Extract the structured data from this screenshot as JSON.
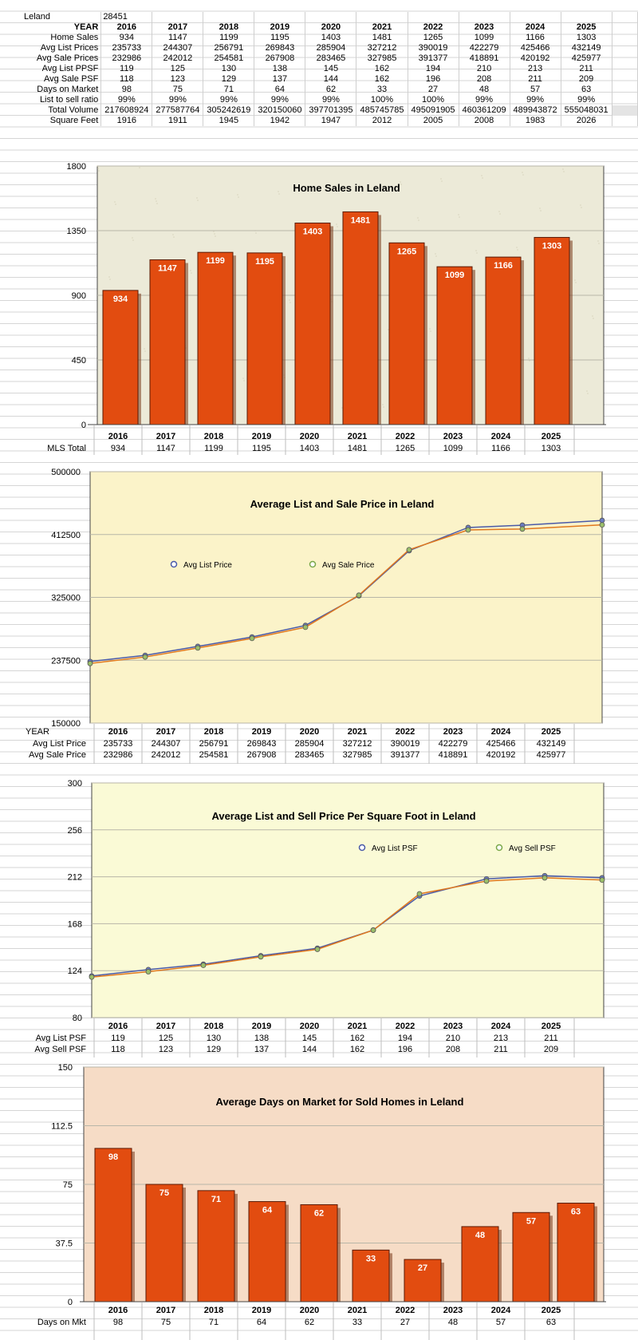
{
  "years": [
    "2016",
    "2017",
    "2018",
    "2019",
    "2020",
    "2021",
    "2022",
    "2023",
    "2024",
    "2025"
  ],
  "header": {
    "city_label": "Leland",
    "zip": "28451"
  },
  "table": [
    {
      "label": "YEAR",
      "bold": true,
      "values": [
        "2016",
        "2017",
        "2018",
        "2019",
        "2020",
        "2021",
        "2022",
        "2023",
        "2024",
        "2025"
      ]
    },
    {
      "label": "Home Sales",
      "values": [
        "934",
        "1147",
        "1199",
        "1195",
        "1403",
        "1481",
        "1265",
        "1099",
        "1166",
        "1303"
      ]
    },
    {
      "label": "Avg List Prices",
      "values": [
        "235733",
        "244307",
        "256791",
        "269843",
        "285904",
        "327212",
        "390019",
        "422279",
        "425466",
        "432149"
      ]
    },
    {
      "label": "Avg Sale Prices",
      "values": [
        "232986",
        "242012",
        "254581",
        "267908",
        "283465",
        "327985",
        "391377",
        "418891",
        "420192",
        "425977"
      ]
    },
    {
      "label": "Avg  List PPSF",
      "values": [
        "119",
        "125",
        "130",
        "138",
        "145",
        "162",
        "194",
        "210",
        "213",
        "211"
      ]
    },
    {
      "label": "Avg Sale PSF",
      "values": [
        "118",
        "123",
        "129",
        "137",
        "144",
        "162",
        "196",
        "208",
        "211",
        "209"
      ]
    },
    {
      "label": "Days on Market",
      "values": [
        "98",
        "75",
        "71",
        "64",
        "62",
        "33",
        "27",
        "48",
        "57",
        "63"
      ]
    },
    {
      "label": "List to sell ratio",
      "values": [
        "99%",
        "99%",
        "99%",
        "99%",
        "99%",
        "100%",
        "100%",
        "99%",
        "99%",
        "99%"
      ]
    },
    {
      "label": "Total Volume",
      "values": [
        "217608924",
        "277587764",
        "305242619",
        "320150060",
        "397701395",
        "485745785",
        "495091905",
        "460361209",
        "489943872",
        "555048031"
      ]
    },
    {
      "label": "Square Feet",
      "values": [
        "1916",
        "1911",
        "1945",
        "1942",
        "1947",
        "2012",
        "2005",
        "2008",
        "1983",
        "2026"
      ]
    }
  ],
  "chart_data": [
    {
      "type": "bar",
      "title": "Home Sales in Leland",
      "categories": [
        "2016",
        "2017",
        "2018",
        "2019",
        "2020",
        "2021",
        "2022",
        "2023",
        "2024",
        "2025"
      ],
      "values": [
        934,
        1147,
        1199,
        1195,
        1403,
        1481,
        1265,
        1099,
        1166,
        1303
      ],
      "ylim": [
        0,
        1800
      ],
      "yticks": [
        "0",
        "450",
        "900",
        "1350",
        "1800"
      ],
      "row_label": "MLS Total",
      "bar_color": "#e24c10",
      "bg": "#ecead8"
    },
    {
      "type": "line",
      "title": "Average List and Sale Price in Leland",
      "categories": [
        "2016",
        "2017",
        "2018",
        "2019",
        "2020",
        "2021",
        "2022",
        "2023",
        "2024",
        "2025"
      ],
      "series": [
        {
          "name": "Avg List Price",
          "values": [
            235733,
            244307,
            256791,
            269843,
            285904,
            327212,
            390019,
            422279,
            425466,
            432149
          ],
          "color": "#4a5aa8"
        },
        {
          "name": "Avg Sale Price",
          "values": [
            232986,
            242012,
            254581,
            267908,
            283465,
            327985,
            391377,
            418891,
            420192,
            425977
          ],
          "color": "#e0781e"
        }
      ],
      "ylim": [
        150000,
        500000
      ],
      "yticks": [
        "150000",
        "237500",
        "325000",
        "412500",
        "500000"
      ],
      "row_header": "YEAR",
      "row_labels": [
        "Avg List Price",
        "Avg Sale Price"
      ],
      "bg": "#fbf3c9"
    },
    {
      "type": "line",
      "title": "Average List and Sell Price Per Square Foot in Leland",
      "categories": [
        "2016",
        "2017",
        "2018",
        "2019",
        "2020",
        "2021",
        "2022",
        "2023",
        "2024",
        "2025"
      ],
      "series": [
        {
          "name": "Avg List PSF",
          "values": [
            119,
            125,
            130,
            138,
            145,
            162,
            194,
            210,
            213,
            211
          ],
          "color": "#4a5aa8"
        },
        {
          "name": "Avg Sell PSF",
          "values": [
            118,
            123,
            129,
            137,
            144,
            162,
            196,
            208,
            211,
            209
          ],
          "color": "#e0781e"
        }
      ],
      "ylim": [
        80,
        300
      ],
      "yticks": [
        "80",
        "124",
        "168",
        "212",
        "256",
        "300"
      ],
      "row_labels": [
        "Avg List PSF",
        "Avg Sell PSF"
      ],
      "bg": "#fafad6"
    },
    {
      "type": "bar",
      "title": "Average Days on Market for Sold Homes in Leland",
      "categories": [
        "2016",
        "2017",
        "2018",
        "2019",
        "2020",
        "2021",
        "2022",
        "2023",
        "2024",
        "2025"
      ],
      "values": [
        98,
        75,
        71,
        64,
        62,
        33,
        27,
        48,
        57,
        63
      ],
      "ylim": [
        0,
        150
      ],
      "yticks": [
        "0",
        "37.5",
        "75",
        "112.5",
        "150"
      ],
      "row_label": "Days on Mkt",
      "bar_color": "#e24c10",
      "bg": "#f6dcc6"
    }
  ]
}
